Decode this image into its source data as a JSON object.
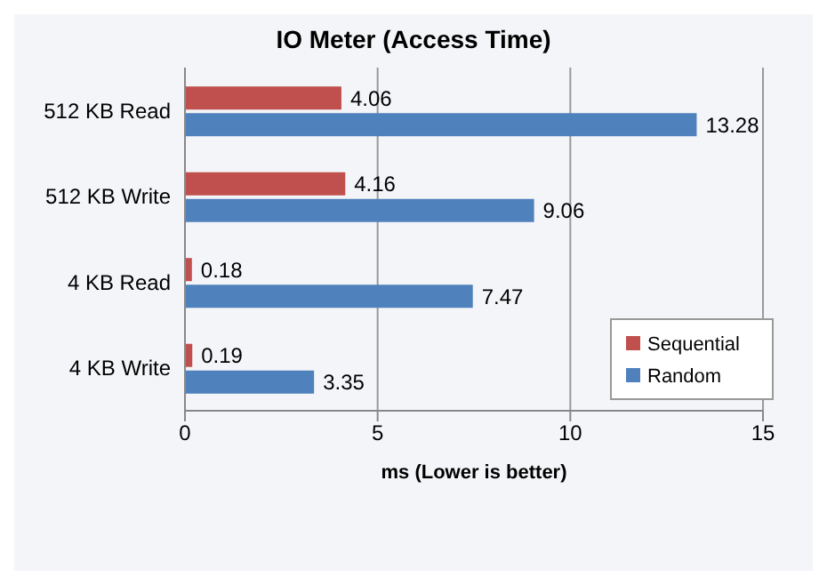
{
  "chart_data": {
    "type": "bar",
    "title": "IO Meter (Access Time)",
    "xlabel": "ms  (Lower is better)",
    "orientation": "horizontal",
    "categories": [
      "512 KB Read",
      "512 KB Write",
      "4 KB Read",
      "4 KB Write"
    ],
    "series": [
      {
        "name": "Sequential",
        "color": "#c0504d",
        "values": [
          4.06,
          4.16,
          0.18,
          0.19
        ]
      },
      {
        "name": "Random",
        "color": "#4f81bd",
        "values": [
          13.28,
          9.06,
          7.47,
          3.35
        ]
      }
    ],
    "xlim": [
      0,
      15
    ],
    "xticks": [
      0,
      5,
      10,
      15
    ],
    "grid": "x",
    "legend": "bottom right",
    "data_labels": true
  }
}
